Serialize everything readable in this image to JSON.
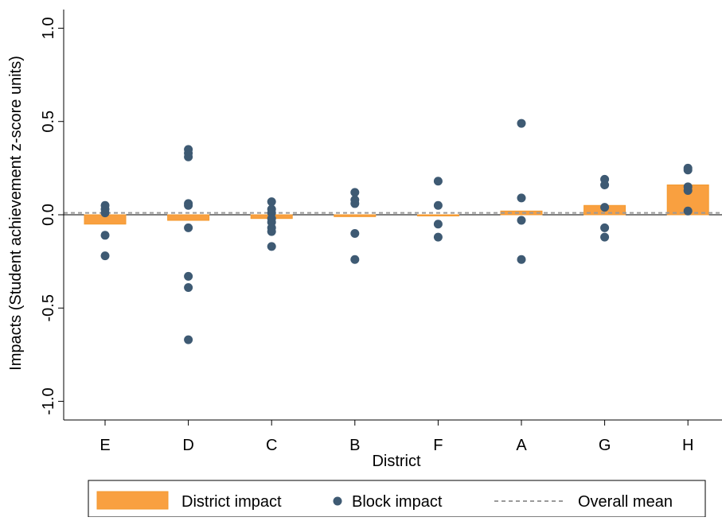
{
  "chart_data": {
    "type": "bar",
    "xlabel": "District",
    "ylabel": "Impacts (Student achievement z-score units)",
    "ylim": [
      -1.1,
      1.1
    ],
    "yticks": [
      1.0,
      0.5,
      0.0,
      -0.5,
      -1.0
    ],
    "ytick_labels": [
      "1.0",
      "0.5",
      "0.0",
      "-0.5",
      "-1.0"
    ],
    "categories": [
      "E",
      "D",
      "C",
      "B",
      "F",
      "A",
      "G",
      "H"
    ],
    "overall_mean": 0.01,
    "series": [
      {
        "name": "District impact",
        "type": "bar",
        "color": "#f9a040",
        "values": [
          -0.05,
          -0.03,
          -0.02,
          -0.01,
          -0.005,
          0.02,
          0.05,
          0.16
        ]
      },
      {
        "name": "Block impact",
        "type": "scatter",
        "color": "#3e5a73",
        "points": [
          [
            0.05,
            0.03,
            0.01,
            -0.11,
            -0.22
          ],
          [
            0.35,
            0.33,
            0.31,
            0.06,
            0.05,
            -0.07,
            -0.33,
            -0.39,
            -0.67
          ],
          [
            0.07,
            0.03,
            0.01,
            -0.02,
            -0.04,
            -0.07,
            -0.09,
            -0.17
          ],
          [
            0.12,
            0.08,
            0.06,
            -0.1,
            -0.24
          ],
          [
            0.18,
            0.05,
            -0.05,
            -0.12
          ],
          [
            0.49,
            0.09,
            -0.03,
            -0.24
          ],
          [
            0.19,
            0.16,
            0.04,
            -0.07,
            -0.12
          ],
          [
            0.25,
            0.24,
            0.15,
            0.13,
            0.02
          ]
        ]
      }
    ],
    "legend": {
      "position": "bottom",
      "items": [
        "District impact",
        "Block impact",
        "Overall mean"
      ]
    },
    "mean_line_color": "#9a9a9a"
  }
}
